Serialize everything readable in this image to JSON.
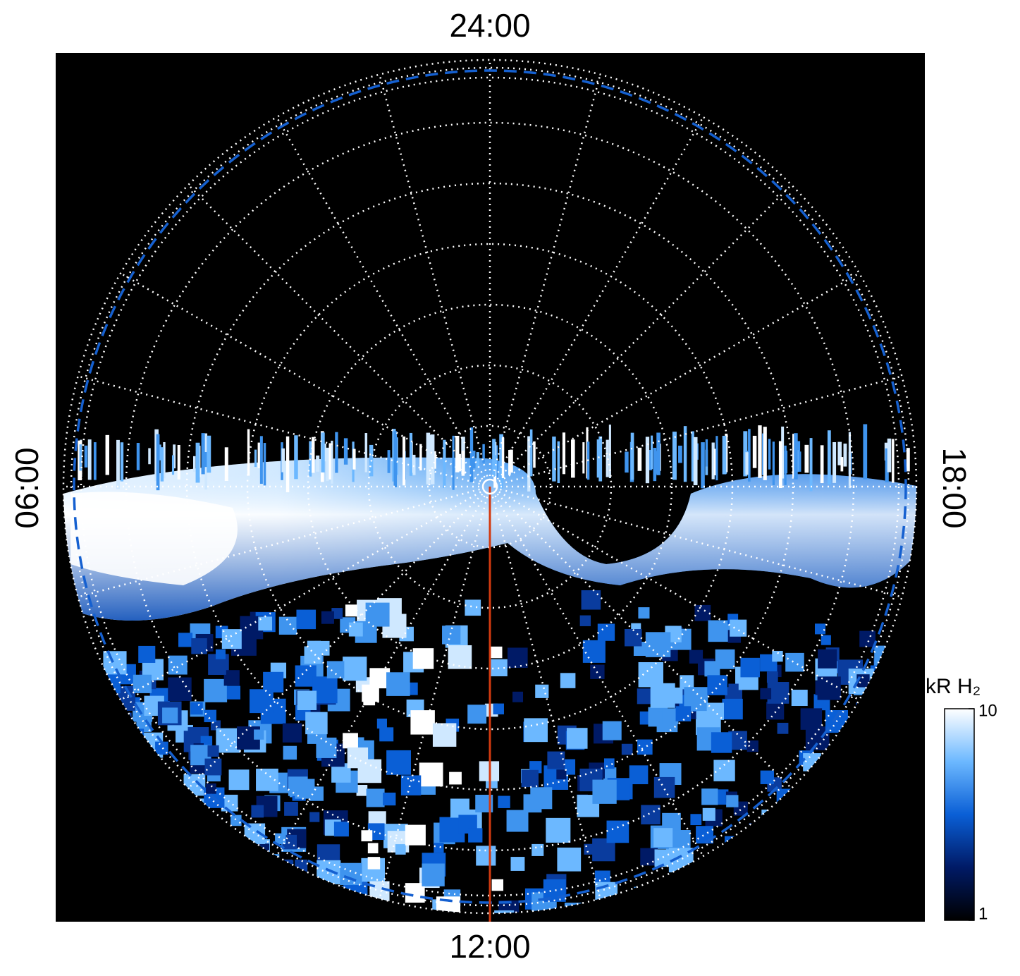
{
  "chart_data": {
    "type": "polar-map",
    "local_time_labels": {
      "top": "24:00",
      "bottom": "12:00",
      "left": "06:00",
      "right": "18:00"
    },
    "colorbar": {
      "label": "kR H₂",
      "lim": [
        1,
        10
      ],
      "ticks": [
        1,
        10
      ],
      "log": true,
      "colors": [
        "#000000",
        "#001a66",
        "#0a5fd6",
        "#6cb8ff",
        "#ffffff"
      ]
    },
    "grid": true
  }
}
